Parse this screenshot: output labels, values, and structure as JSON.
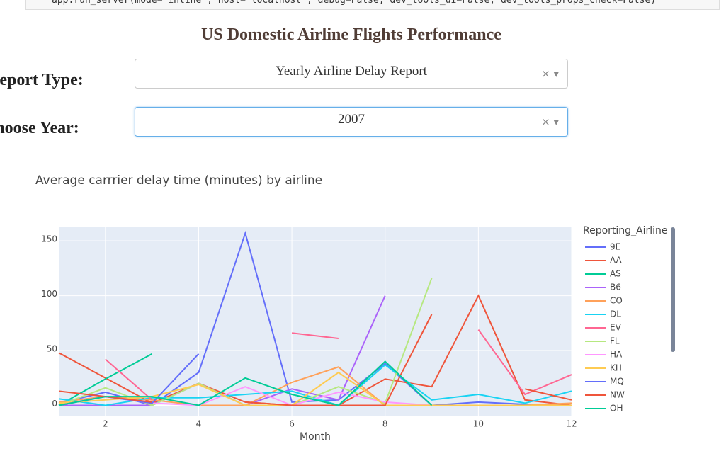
{
  "code_line": "app.run_server(mode='inline', host='localhost', debug=False, dev_tools_ui=False, dev_tools_props_check=False)",
  "header": {
    "title": "US Domestic Airline Flights Performance"
  },
  "controls": [
    {
      "label": "Report Type:",
      "value": "Yearly Airline Delay Report"
    },
    {
      "label": "Choose Year:",
      "value": "2007"
    }
  ],
  "chart_data": {
    "type": "line",
    "title": "Average carrrier delay time (minutes) by airline",
    "x_label": "Month",
    "legend_title": "Reporting_Airline",
    "x": [
      1,
      2,
      3,
      4,
      5,
      6,
      7,
      8,
      9,
      10,
      11,
      12
    ],
    "xlim": [
      1,
      12
    ],
    "xticks": [
      2,
      4,
      6,
      8,
      10,
      12
    ],
    "ylim": [
      -10,
      163
    ],
    "yticks": [
      0,
      50,
      100,
      150
    ],
    "grid": true,
    "series": [
      {
        "name": "9E",
        "color": "#636efa",
        "values": [
          2,
          12,
          0,
          30,
          157,
          3,
          5,
          38,
          0,
          3,
          1,
          0
        ]
      },
      {
        "name": "AA",
        "color": "#EF553B",
        "values": [
          48,
          25,
          2,
          20,
          3,
          0,
          0,
          24,
          17,
          100,
          5,
          0
        ]
      },
      {
        "name": "AS",
        "color": "#00cc96",
        "values": [
          0,
          24,
          47,
          null,
          null,
          null,
          null,
          null,
          null,
          null,
          null,
          null
        ]
      },
      {
        "name": "B6",
        "color": "#ab63fa",
        "values": [
          0,
          0,
          0,
          20,
          0,
          15,
          5,
          100,
          null,
          null,
          null,
          null
        ]
      },
      {
        "name": "CO",
        "color": "#FFA15A",
        "values": [
          3,
          8,
          5,
          0,
          0,
          21,
          35,
          0,
          0,
          0,
          0,
          2
        ]
      },
      {
        "name": "DL",
        "color": "#19d3f3",
        "values": [
          6,
          0,
          7,
          7,
          10,
          13,
          0,
          37,
          5,
          10,
          2,
          13
        ]
      },
      {
        "name": "EV",
        "color": "#FF6692",
        "values": [
          null,
          42,
          5,
          null,
          null,
          66,
          61,
          null,
          null,
          69,
          10,
          28
        ]
      },
      {
        "name": "FL",
        "color": "#B6E880",
        "values": [
          0,
          16,
          0,
          20,
          0,
          0,
          17,
          2,
          116,
          null,
          null,
          null
        ]
      },
      {
        "name": "HA",
        "color": "#FF97FF",
        "values": [
          0,
          8,
          2,
          0,
          17,
          0,
          12,
          3,
          0,
          0,
          0,
          0
        ]
      },
      {
        "name": "KH",
        "color": "#FECB52",
        "values": [
          2,
          5,
          8,
          19,
          0,
          0,
          30,
          0,
          0,
          0,
          0,
          0
        ]
      },
      {
        "name": "MQ",
        "color": "#636efa",
        "values": [
          0,
          8,
          2,
          47,
          null,
          null,
          null,
          null,
          null,
          null,
          null,
          null
        ]
      },
      {
        "name": "NW",
        "color": "#EF553B",
        "values": [
          13,
          8,
          3,
          null,
          3,
          0,
          0,
          0,
          83,
          null,
          15,
          5
        ]
      },
      {
        "name": "OH",
        "color": "#00cc96",
        "values": [
          0,
          8,
          8,
          0,
          25,
          10,
          0,
          40,
          0,
          null,
          null,
          null
        ]
      }
    ]
  }
}
